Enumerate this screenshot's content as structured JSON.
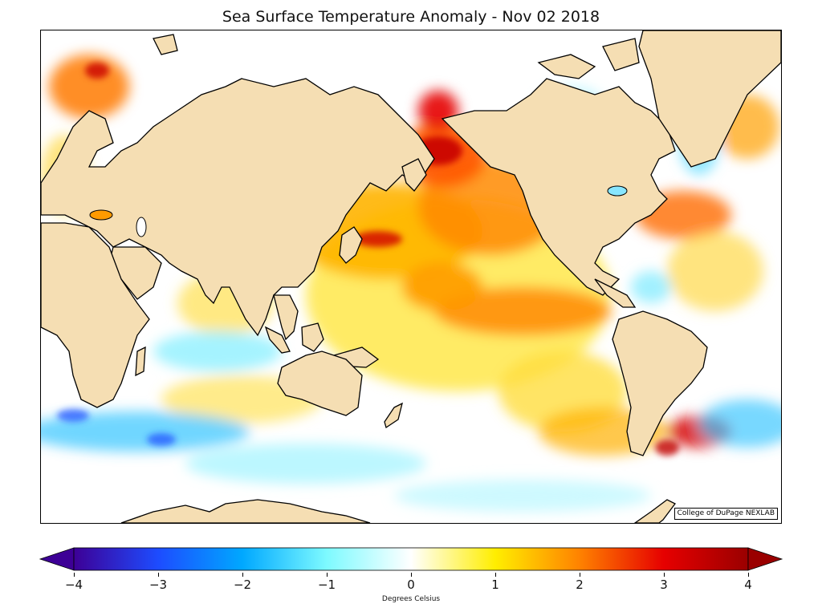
{
  "title": "Sea Surface Temperature Anomaly - Nov 02 2018",
  "credit": "College of DuPage NEXLAB",
  "colorbar": {
    "label": "Degrees Celsius",
    "range": [
      -4,
      4
    ],
    "ticks": [
      {
        "value": -4,
        "label": "−4"
      },
      {
        "value": -3,
        "label": "−3"
      },
      {
        "value": -2,
        "label": "−2"
      },
      {
        "value": -1,
        "label": "−1"
      },
      {
        "value": 0,
        "label": "0"
      },
      {
        "value": 1,
        "label": "1"
      },
      {
        "value": 2,
        "label": "2"
      },
      {
        "value": 3,
        "label": "3"
      },
      {
        "value": 4,
        "label": "4"
      }
    ],
    "extend": "both",
    "colors": {
      "-4": "#3d0096",
      "-3": "#1d4cff",
      "-2": "#00a8ff",
      "-1": "#7dfaff",
      "0": "#ffffff",
      "1": "#ffee00",
      "2": "#ff8200",
      "3": "#e60000",
      "4": "#9a0000"
    }
  },
  "map": {
    "projection": "Mercator, Pacific-centered",
    "land_color": "#f5deb3",
    "ocean_background": "#ffffff"
  }
}
